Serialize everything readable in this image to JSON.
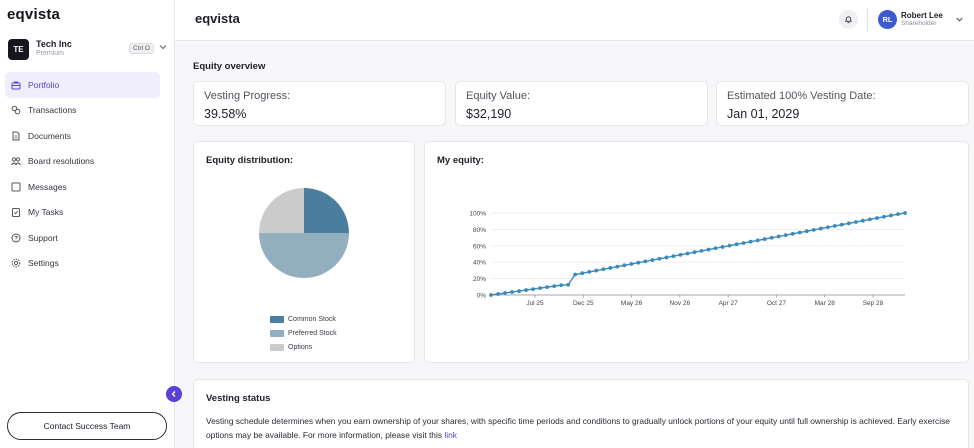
{
  "sidebar": {
    "logo": "eqvista",
    "company": {
      "initials": "TE",
      "name": "Tech Inc",
      "plan": "Premium",
      "shortcut": "Ctrl O"
    },
    "items": [
      {
        "label": "Portfolio",
        "icon": "briefcase-icon",
        "active": true
      },
      {
        "label": "Transactions",
        "icon": "transactions-icon",
        "active": false
      },
      {
        "label": "Documents",
        "icon": "document-icon",
        "active": false
      },
      {
        "label": "Board resolutions",
        "icon": "people-icon",
        "active": false
      },
      {
        "label": "Messages",
        "icon": "message-icon",
        "active": false
      },
      {
        "label": "My Tasks",
        "icon": "clipboard-icon",
        "active": false
      },
      {
        "label": "Support",
        "icon": "help-icon",
        "active": false
      },
      {
        "label": "Settings",
        "icon": "gear-icon",
        "active": false
      }
    ],
    "contact_label": "Contact Success Team"
  },
  "header": {
    "brand": "eqvista",
    "user": {
      "initials": "RL",
      "name": "Robert Lee",
      "role": "Shareholder"
    }
  },
  "overview": {
    "title": "Equity overview",
    "stats": [
      {
        "label": "Vesting Progress:",
        "value": "39.58%"
      },
      {
        "label": "Equity Value:",
        "value": "$32,190"
      },
      {
        "label": "Estimated 100% Vesting Date:",
        "value": "Jan 01, 2029"
      }
    ]
  },
  "distribution": {
    "title": "Equity distribution:",
    "chart_data": {
      "type": "pie",
      "slices": [
        {
          "label": "Common Stock",
          "value": 25,
          "color": "#4a7d9e"
        },
        {
          "label": "Preferred Stock",
          "value": 50,
          "color": "#93aebd"
        },
        {
          "label": "Options",
          "value": 25,
          "color": "#cbcbcb"
        }
      ]
    }
  },
  "my_equity": {
    "title": "My equity:",
    "chart_data": {
      "type": "line",
      "color": "#3a8bbd",
      "ylim": [
        0,
        100
      ],
      "y_ticks": [
        "0%",
        "20%",
        "40%",
        "60%",
        "80%",
        "100%"
      ],
      "x_ticks": [
        "Jul 25",
        "Dec 25",
        "May 26",
        "Nov 26",
        "Apr 27",
        "Oct 27",
        "Mar 28",
        "Sep 28"
      ],
      "values": [
        0,
        1.2,
        2.4,
        3.6,
        4.8,
        6,
        7.2,
        8.4,
        9.6,
        10.8,
        12,
        12.5,
        25,
        26.6,
        28.2,
        29.8,
        31.4,
        33,
        34.6,
        36.2,
        37.8,
        39.4,
        41,
        42.6,
        44.2,
        45.8,
        47.4,
        49,
        50.6,
        52.2,
        53.8,
        55.4,
        57,
        58.6,
        60.2,
        61.8,
        63.4,
        65,
        66.6,
        68.2,
        69.8,
        71.4,
        73,
        74.6,
        76.2,
        77.8,
        79.4,
        81,
        82.6,
        84.2,
        85.8,
        87.4,
        89,
        90.6,
        92.2,
        93.8,
        95.4,
        97,
        98.6,
        100
      ]
    }
  },
  "vesting": {
    "title": "Vesting status",
    "text": "Vesting schedule determines when you earn ownership of your shares, with specific time periods and conditions to gradually unlock portions of your equity until full ownership is achieved. Early exercise options may be available. For more information, please visit this ",
    "link": "link"
  }
}
